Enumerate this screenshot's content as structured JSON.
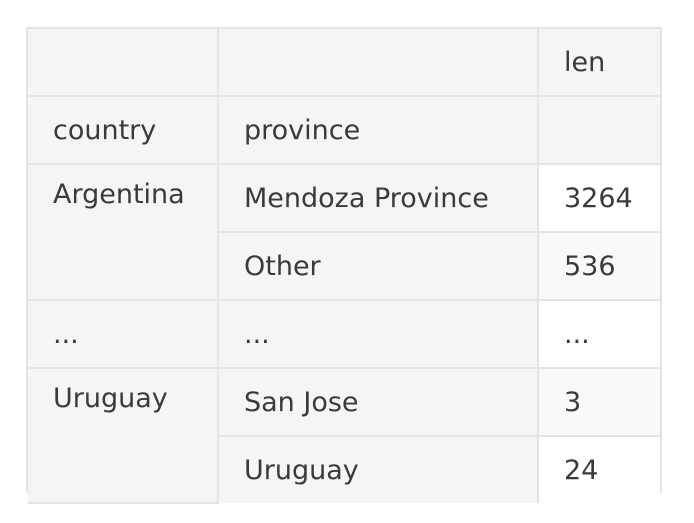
{
  "table": {
    "value_column": "len",
    "index_headers": [
      "country",
      "province"
    ],
    "groups": [
      {
        "country": "Argentina",
        "rows": [
          {
            "province": "Mendoza Province",
            "len": "3264"
          },
          {
            "province": "Other",
            "len": "536"
          }
        ]
      },
      {
        "country": "...",
        "rows": [
          {
            "province": "...",
            "len": "..."
          }
        ]
      },
      {
        "country": "Uruguay",
        "rows": [
          {
            "province": "San Jose",
            "len": "3"
          },
          {
            "province": "Uruguay",
            "len": "24"
          }
        ]
      }
    ]
  }
}
